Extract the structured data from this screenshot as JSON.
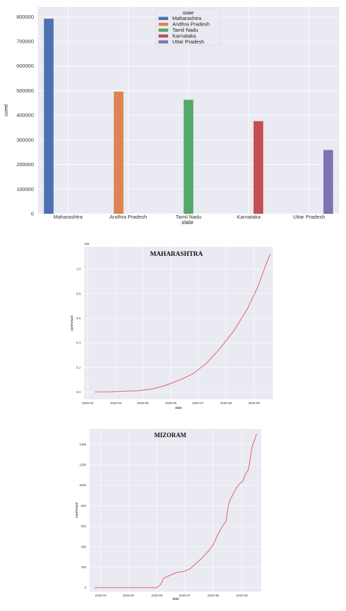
{
  "chart_data": [
    {
      "type": "bar",
      "title": "",
      "xlabel": "state",
      "ylabel": "cured",
      "categories": [
        "Maharashtra",
        "Andhra Pradesh",
        "Tamil Nadu",
        "Karnataka",
        "Uttar Pradesh"
      ],
      "series": [
        {
          "name": "Maharashtra",
          "color": "#4c72b0",
          "values": [
            792000,
            null,
            null,
            null,
            null
          ]
        },
        {
          "name": "Andhra Pradesh",
          "color": "#dd8452",
          "values": [
            null,
            496000,
            null,
            null,
            null
          ]
        },
        {
          "name": "Tamil Nadu",
          "color": "#55a868",
          "values": [
            null,
            null,
            463000,
            null,
            null
          ]
        },
        {
          "name": "Karnataka",
          "color": "#c44e52",
          "values": [
            null,
            null,
            null,
            376000,
            null
          ]
        },
        {
          "name": "Uttar Pradesh",
          "color": "#8172b3",
          "values": [
            null,
            null,
            null,
            null,
            259000
          ]
        }
      ],
      "ylim": [
        0,
        840000
      ],
      "yticks": [
        0,
        100000,
        200000,
        300000,
        400000,
        500000,
        600000,
        700000,
        800000
      ],
      "ytick_labels": [
        "0",
        "100000",
        "200000",
        "300000",
        "400000",
        "500000",
        "600000",
        "700000",
        "800000"
      ],
      "legend_title": "state",
      "legend": [
        "Maharashtra",
        "Andhra Pradesh",
        "Tamil Nadu",
        "Karnataka",
        "Uttar Pradesh"
      ],
      "legend_position": "top-center",
      "grid": true
    },
    {
      "type": "line",
      "title": "MAHARASHTRA",
      "xlabel": "date",
      "ylabel": "confirmed",
      "offset_label": "1e6",
      "line_color": "#d9616e",
      "xlim": [
        "2020-02-26",
        "2020-09-22"
      ],
      "ylim": [
        -0.06,
        1.18
      ],
      "xticks": [
        "2020-03-01",
        "2020-04-01",
        "2020-05-01",
        "2020-06-01",
        "2020-07-01",
        "2020-08-01",
        "2020-09-01"
      ],
      "xtick_labels": [
        "2020-03",
        "2020-04",
        "2020-05",
        "2020-06",
        "2020-07",
        "2020-08",
        "2020-09"
      ],
      "yticks": [
        0.0,
        0.2,
        0.4,
        0.6,
        0.8,
        1.0
      ],
      "ytick_labels": [
        "0.0",
        "0.2",
        "0.4",
        "0.6",
        "0.8",
        "1.0"
      ],
      "x": [
        "2020-03-09",
        "2020-03-25",
        "2020-04-10",
        "2020-04-25",
        "2020-05-10",
        "2020-05-25",
        "2020-06-10",
        "2020-06-25",
        "2020-07-10",
        "2020-07-25",
        "2020-08-10",
        "2020-08-25",
        "2020-09-05",
        "2020-09-15",
        "2020-09-19"
      ],
      "y": [
        0.0,
        0.001,
        0.005,
        0.009,
        0.022,
        0.05,
        0.095,
        0.145,
        0.23,
        0.35,
        0.5,
        0.68,
        0.85,
        1.05,
        1.12
      ],
      "grid": true
    },
    {
      "type": "line",
      "title": "MIZORAM",
      "xlabel": "date",
      "ylabel": "confirmed",
      "line_color": "#d9616e",
      "xlim": [
        "2020-03-20",
        "2020-09-22"
      ],
      "ylim": [
        -40,
        1550
      ],
      "xticks": [
        "2020-04-01",
        "2020-05-01",
        "2020-06-01",
        "2020-07-01",
        "2020-08-01",
        "2020-09-01"
      ],
      "xtick_labels": [
        "2020-04",
        "2020-05",
        "2020-06",
        "2020-07",
        "2020-08",
        "2020-09"
      ],
      "yticks": [
        0,
        200,
        400,
        600,
        800,
        1000,
        1200,
        1400
      ],
      "ytick_labels": [
        "0",
        "200",
        "400",
        "600",
        "800",
        "1000",
        "1200",
        "1400"
      ],
      "x": [
        "2020-03-25",
        "2020-04-15",
        "2020-05-15",
        "2020-06-01",
        "2020-06-05",
        "2020-06-08",
        "2020-06-15",
        "2020-06-22",
        "2020-07-01",
        "2020-07-07",
        "2020-07-14",
        "2020-07-21",
        "2020-07-28",
        "2020-08-01",
        "2020-08-06",
        "2020-08-11",
        "2020-08-15",
        "2020-08-17",
        "2020-08-19",
        "2020-08-24",
        "2020-08-28",
        "2020-09-02",
        "2020-09-05",
        "2020-09-08",
        "2020-09-10",
        "2020-09-12",
        "2020-09-15",
        "2020-09-17"
      ],
      "y": [
        0,
        0,
        0,
        0,
        30,
        90,
        120,
        145,
        160,
        185,
        240,
        300,
        370,
        420,
        520,
        600,
        650,
        780,
        850,
        940,
        1000,
        1040,
        1110,
        1150,
        1250,
        1370,
        1450,
        1500
      ],
      "grid": true
    }
  ]
}
